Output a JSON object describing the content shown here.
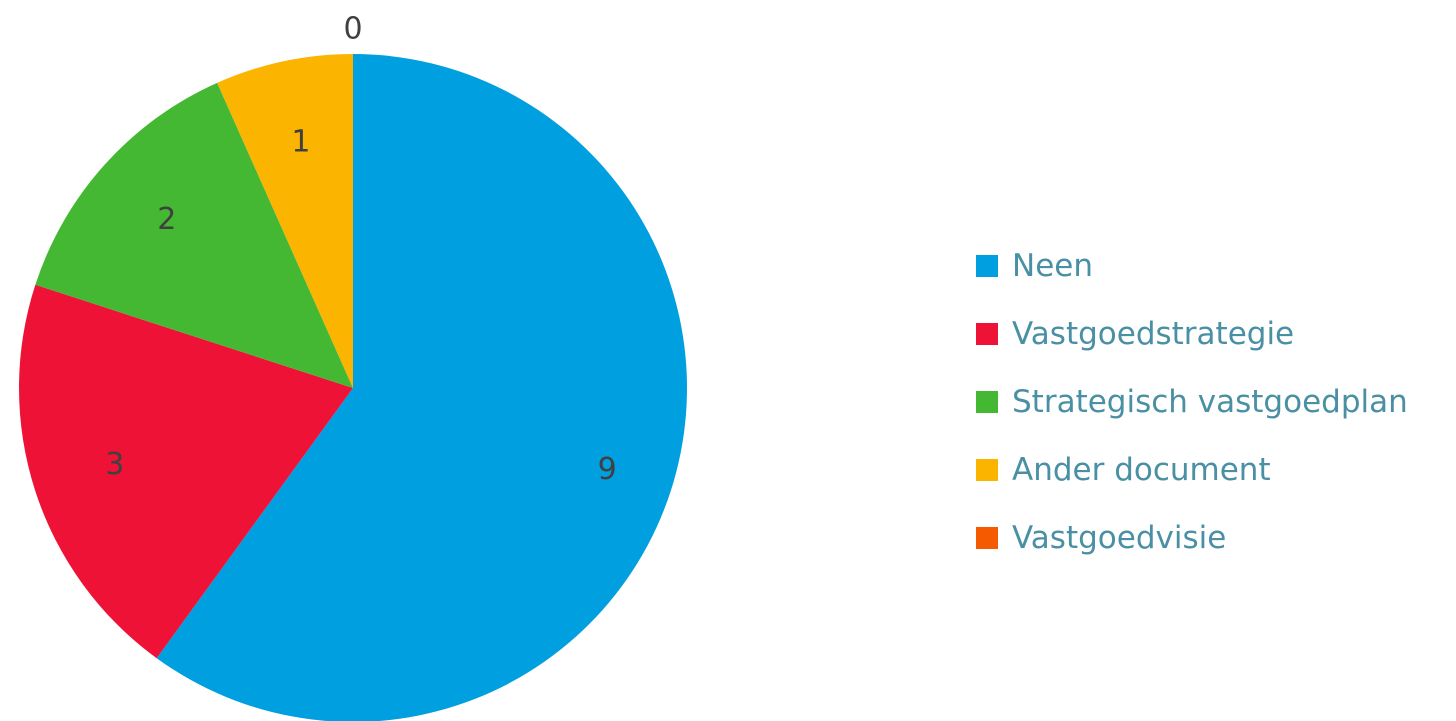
{
  "chart_data": {
    "type": "pie",
    "categories": [
      "Neen",
      "Vastgoedstrategie",
      "Strategisch vastgoedplan",
      "Ander document",
      "Vastgoedvisie"
    ],
    "values": [
      9,
      3,
      2,
      1,
      0
    ],
    "data_labels": [
      "9",
      "3",
      "2",
      "1",
      "0"
    ],
    "colors": [
      "#009fe0",
      "#ee1237",
      "#45b833",
      "#fbb400",
      "#f55a00"
    ],
    "start_angle": "12 o'clock",
    "direction": "clockwise",
    "legend_position": "right"
  }
}
